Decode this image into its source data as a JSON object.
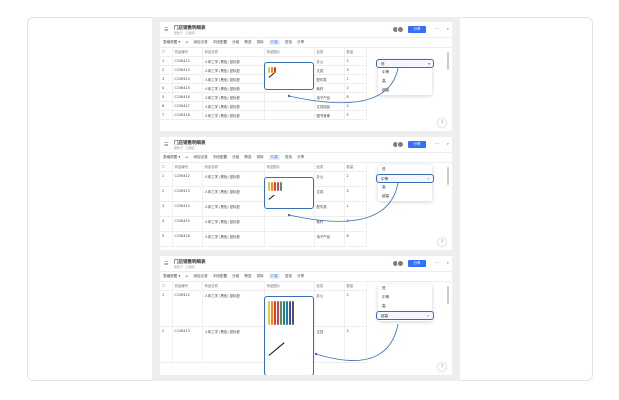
{
  "table": {
    "title": "门店销售明细表",
    "subtitle": "更新于 · 已保存",
    "share_label": "分享",
    "toolbar": [
      "添加记录",
      "字段配置",
      "分组",
      "筛选",
      "排序",
      "行高",
      "查找",
      "分享"
    ],
    "view_label": "表格视图",
    "columns": [
      "序号",
      "商品编号",
      "商品名称",
      "商品图片",
      "品类",
      "数量"
    ],
    "rows": [
      [
        "1",
        "C156412",
        "人体工学 (黑色) 鼠标垫",
        "",
        "办公",
        "2"
      ],
      [
        "2",
        "C156413",
        "人体工学 (黑色) 鼠标垫",
        "",
        "文具",
        "3"
      ],
      [
        "3",
        "C156414",
        "人体工学 (黑色) 鼠标垫",
        "",
        "配件类",
        "1"
      ],
      [
        "4",
        "C156415",
        "人体工学 (黑色) 鼠标垫",
        "",
        "耗材",
        "2"
      ],
      [
        "5",
        "C156416",
        "人体工学 (黑色) 鼠标垫",
        "",
        "电子产品",
        "8"
      ],
      [
        "6",
        "C156417",
        "人体工学 (黑色) 鼠标垫",
        "",
        "文具用品",
        "2"
      ],
      [
        "7",
        "C156418",
        "人体工学 (黑色) 鼠标垫",
        "",
        "图书音像",
        "5"
      ]
    ]
  },
  "row_height_menu": {
    "options": [
      "低",
      "中等",
      "高",
      "超高"
    ]
  },
  "panels": [
    {
      "selected": "低",
      "rows": 7
    },
    {
      "selected": "中等",
      "rows": 5
    },
    {
      "selected": "超高",
      "rows": 2
    }
  ],
  "colors": {
    "accent": "#3370ff",
    "highlight": "#3a6fb5",
    "pens": [
      "#f2c230",
      "#f08a24",
      "#e0402a",
      "#c83a7a",
      "#3aa352",
      "#1f8a5a",
      "#2f6fd0",
      "#3b4bb0",
      "#555555"
    ]
  }
}
